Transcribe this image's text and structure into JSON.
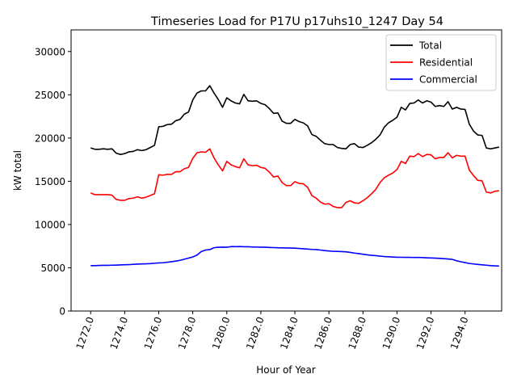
{
  "chart_data": {
    "type": "line",
    "title": "Timeseries Load for P17U p17uhs10_1247  Day 54",
    "xlabel": "Hour of Year",
    "ylabel": "kW total",
    "xlim": [
      1270.85,
      1296.15
    ],
    "ylim": [
      0,
      32500
    ],
    "xticks": [
      1272,
      1274,
      1276,
      1278,
      1280,
      1282,
      1284,
      1286,
      1288,
      1290,
      1292,
      1294
    ],
    "xtick_labels": [
      "1272.0",
      "1274.0",
      "1276.0",
      "1278.0",
      "1280.0",
      "1282.0",
      "1284.0",
      "1286.0",
      "1288.0",
      "1290.0",
      "1292.0",
      "1294.0"
    ],
    "yticks": [
      0,
      5000,
      10000,
      15000,
      20000,
      25000,
      30000
    ],
    "ytick_labels": [
      "0",
      "5000",
      "10000",
      "15000",
      "20000",
      "25000",
      "30000"
    ],
    "legend_position": "top-right",
    "grid": false,
    "x_start": 1272.0,
    "x_step": 0.25,
    "series": [
      {
        "name": "Total",
        "color": "#000000",
        "values": [
          18850,
          18700,
          18700,
          18750,
          18700,
          18750,
          18250,
          18100,
          18200,
          18400,
          18450,
          18650,
          18550,
          18650,
          18900,
          19150,
          21300,
          21350,
          21550,
          21600,
          22000,
          22150,
          22750,
          23000,
          24400,
          25200,
          25450,
          25450,
          26050,
          25200,
          24450,
          23550,
          24650,
          24300,
          24050,
          23950,
          25050,
          24300,
          24250,
          24300,
          24000,
          23850,
          23400,
          22850,
          22900,
          21950,
          21700,
          21700,
          22150,
          21900,
          21750,
          21400,
          20400,
          20200,
          19750,
          19350,
          19250,
          19250,
          18900,
          18800,
          18750,
          19250,
          19350,
          18950,
          18900,
          19150,
          19450,
          19850,
          20350,
          21250,
          21750,
          22050,
          22400,
          23550,
          23250,
          24000,
          24050,
          24400,
          24050,
          24300,
          24150,
          23650,
          23750,
          23650,
          24200,
          23350,
          23550,
          23350,
          23300,
          21600,
          20800,
          20350,
          20300,
          18850,
          18750,
          18850,
          18950
        ]
      },
      {
        "name": "Residential",
        "color": "#ff0000",
        "values": [
          13650,
          13450,
          13450,
          13450,
          13450,
          13400,
          12900,
          12800,
          12800,
          13000,
          13050,
          13200,
          13050,
          13150,
          13350,
          13550,
          15750,
          15700,
          15800,
          15800,
          16100,
          16100,
          16450,
          16600,
          17650,
          18300,
          18400,
          18350,
          18750,
          17700,
          16900,
          16200,
          17300,
          16900,
          16700,
          16550,
          17600,
          16900,
          16800,
          16850,
          16600,
          16500,
          16050,
          15500,
          15600,
          14850,
          14500,
          14500,
          14950,
          14750,
          14700,
          14300,
          13350,
          13050,
          12600,
          12350,
          12400,
          12100,
          11950,
          11950,
          12550,
          12750,
          12500,
          12450,
          12750,
          13100,
          13550,
          14050,
          14850,
          15400,
          15700,
          15950,
          16350,
          17300,
          17050,
          17900,
          17850,
          18200,
          17850,
          18100,
          18050,
          17600,
          17750,
          17750,
          18300,
          17700,
          18000,
          17900,
          17900,
          16300,
          15650,
          15100,
          15050,
          13750,
          13650,
          13850,
          13900
        ]
      },
      {
        "name": "Commercial",
        "color": "#0000ff",
        "values": [
          5250,
          5250,
          5270,
          5280,
          5280,
          5300,
          5310,
          5330,
          5350,
          5360,
          5400,
          5420,
          5450,
          5460,
          5480,
          5520,
          5560,
          5580,
          5640,
          5700,
          5770,
          5860,
          5990,
          6120,
          6250,
          6470,
          6880,
          7050,
          7100,
          7320,
          7370,
          7380,
          7370,
          7450,
          7440,
          7450,
          7430,
          7430,
          7410,
          7390,
          7380,
          7370,
          7350,
          7330,
          7310,
          7300,
          7290,
          7280,
          7270,
          7230,
          7200,
          7160,
          7120,
          7100,
          7050,
          6990,
          6940,
          6900,
          6890,
          6870,
          6850,
          6780,
          6700,
          6640,
          6570,
          6500,
          6440,
          6400,
          6350,
          6300,
          6270,
          6240,
          6220,
          6210,
          6200,
          6200,
          6190,
          6190,
          6180,
          6150,
          6130,
          6110,
          6090,
          6050,
          6020,
          5970,
          5810,
          5700,
          5600,
          5500,
          5440,
          5390,
          5340,
          5300,
          5250,
          5220,
          5200
        ]
      }
    ]
  }
}
